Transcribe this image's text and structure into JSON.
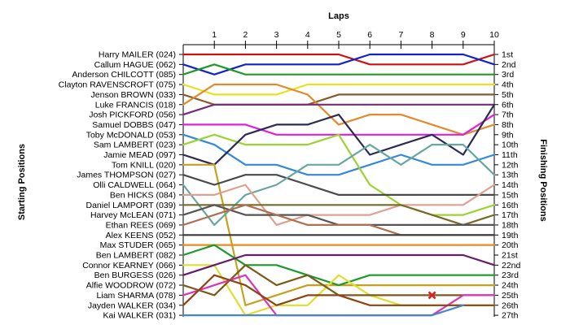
{
  "chart_data": {
    "type": "line",
    "title": "Laps",
    "xlabel": "Laps",
    "ylabel_left": "Starting Positions",
    "ylabel_right": "Finishing Positions",
    "x": [
      0,
      1,
      2,
      3,
      4,
      5,
      6,
      7,
      8,
      9,
      10
    ],
    "x_tick_labels": [
      "1",
      "2",
      "3",
      "4",
      "5",
      "6",
      "7",
      "8",
      "9",
      "10"
    ],
    "xlim": [
      0,
      10
    ],
    "ylim": [
      1,
      27
    ],
    "starting_labels": [
      "Harry MAILER (024)",
      "Callum HAGUE (062)",
      "Anderson CHILCOTT (085)",
      "Clayton RAVENSCROFT (075)",
      "Jenson BROWN (033)",
      "Luke FRANCIS (018)",
      "Josh PICKFORD (056)",
      "Samuel DOBBS (047)",
      "Toby McDONALD (053)",
      "Sam LAMBERT (023)",
      "Jamie MEAD (097)",
      "Tom KNILL (020)",
      "James THOMPSON (027)",
      "Olli CALDWELL (064)",
      "Ben HICKS (084)",
      "Daniel LAMPORT (039)",
      "Harvey McLEAN (071)",
      "Ethan REES (069)",
      "Alex KEENS (052)",
      "Max STUDER (065)",
      "Ben LAMBERT (082)",
      "Connor KEARNEY (066)",
      "Ben BURGESS (026)",
      "Alfie WOODROW (072)",
      "Liam SHARMA (078)",
      "Jayden WALKER (034)",
      "Kai WALKER (031)"
    ],
    "finishing_labels": [
      "1st",
      "2nd",
      "3rd",
      "4th",
      "5th",
      "6th",
      "7th",
      "8th",
      "9th",
      "10th",
      "11th",
      "12th",
      "13th",
      "14th",
      "15th",
      "16th",
      "17th",
      "18th",
      "19th",
      "20th",
      "21st",
      "22nd",
      "23rd",
      "24th",
      "25th",
      "26th",
      "27th"
    ],
    "series": [
      {
        "color": "#cc1111",
        "values": [
          1,
          1,
          1,
          1,
          1,
          1,
          2,
          2,
          2,
          2,
          1
        ]
      },
      {
        "color": "#1122cc",
        "values": [
          2,
          3,
          2,
          2,
          2,
          2,
          1,
          1,
          1,
          1,
          2
        ]
      },
      {
        "color": "#229922",
        "values": [
          3,
          2,
          3,
          3,
          3,
          3,
          3,
          3,
          3,
          3,
          3
        ]
      },
      {
        "color": "#e8e020",
        "values": [
          4,
          5,
          5,
          5,
          4,
          4,
          4,
          4,
          4,
          4,
          4
        ]
      },
      {
        "color": "#8b5a2b",
        "values": [
          5,
          6,
          6,
          6,
          6,
          5,
          5,
          5,
          5,
          5,
          5
        ]
      },
      {
        "color": "#e28a2c",
        "values": [
          6,
          4,
          4,
          4,
          5,
          8,
          7,
          7,
          8,
          9,
          8
        ]
      },
      {
        "color": "#7a2a7a",
        "values": [
          7,
          6,
          6,
          6,
          6,
          6,
          6,
          6,
          6,
          6,
          6
        ]
      },
      {
        "color": "#e020e0",
        "values": [
          8,
          8,
          8,
          9,
          9,
          9,
          9,
          9,
          9,
          9,
          7
        ]
      },
      {
        "color": "#3388dd",
        "values": [
          9,
          10,
          12,
          12,
          13,
          13,
          12,
          11,
          12,
          12,
          11
        ]
      },
      {
        "color": "#9ad432",
        "values": [
          10,
          9,
          10,
          10,
          10,
          9,
          14,
          16,
          17,
          17,
          16
        ]
      },
      {
        "color": "#2a2a55",
        "values": [
          11,
          12,
          9,
          8,
          8,
          7,
          11,
          10,
          9,
          11,
          6
        ]
      },
      {
        "color": "#c8a020",
        "values": [
          12,
          12,
          26,
          25,
          24,
          24,
          24,
          24,
          24,
          24,
          24
        ]
      },
      {
        "color": "#4a4a4a",
        "values": [
          13,
          14,
          13,
          13,
          14,
          15,
          15,
          15,
          15,
          15,
          15
        ]
      },
      {
        "color": "#66a8a0",
        "values": [
          14,
          18,
          15,
          14,
          12,
          12,
          10,
          12,
          10,
          10,
          13
        ]
      },
      {
        "color": "#e0a090",
        "values": [
          15,
          15,
          14,
          18,
          17,
          17,
          17,
          16,
          16,
          16,
          14
        ]
      },
      {
        "color": "#7a6a2a",
        "values": [
          16,
          16,
          16,
          16,
          16,
          16,
          16,
          16,
          17,
          18,
          17
        ]
      },
      {
        "color": "#555555",
        "values": [
          17,
          16,
          17,
          17,
          17,
          18,
          18,
          18,
          18,
          18,
          18
        ]
      },
      {
        "color": "#b07050",
        "values": [
          18,
          17,
          16,
          17,
          18,
          18,
          18,
          19,
          19,
          19,
          19
        ]
      },
      {
        "color": "#3a3a3a",
        "values": [
          19,
          19,
          19,
          19,
          19,
          19,
          19,
          19,
          19,
          19,
          19
        ]
      },
      {
        "color": "#e88a20",
        "values": [
          20,
          20,
          20,
          20,
          20,
          20,
          20,
          20,
          20,
          20,
          20
        ]
      },
      {
        "color": "#1a9a2a",
        "values": [
          21,
          20,
          22,
          22,
          23,
          24,
          23,
          23,
          23,
          23,
          23
        ]
      },
      {
        "color": "#dede30",
        "values": [
          22,
          22,
          27,
          26,
          26,
          23,
          25,
          26,
          26,
          26,
          26
        ]
      },
      {
        "color": "#6a1a6a",
        "values": [
          23,
          22,
          21,
          21,
          21,
          21,
          21,
          21,
          21,
          21,
          22
        ]
      },
      {
        "color": "#7b5a1a",
        "values": [
          24,
          25,
          22,
          24,
          23,
          25,
          25,
          25,
          25,
          25,
          25
        ]
      },
      {
        "color": "#dd33bb",
        "values": [
          25,
          24,
          23,
          27,
          27,
          27,
          27,
          27,
          27,
          25,
          25
        ]
      },
      {
        "color": "#8b4513",
        "values": [
          26,
          23,
          24,
          26,
          25,
          25,
          26,
          26,
          26,
          26,
          26
        ]
      },
      {
        "color": "#4488cc",
        "values": [
          27,
          27,
          27,
          27,
          27,
          27,
          27,
          27,
          27,
          26,
          null
        ]
      }
    ],
    "retired_marker": {
      "lap": 8,
      "position": 25,
      "color": "#e02020",
      "symbol": "x"
    }
  }
}
